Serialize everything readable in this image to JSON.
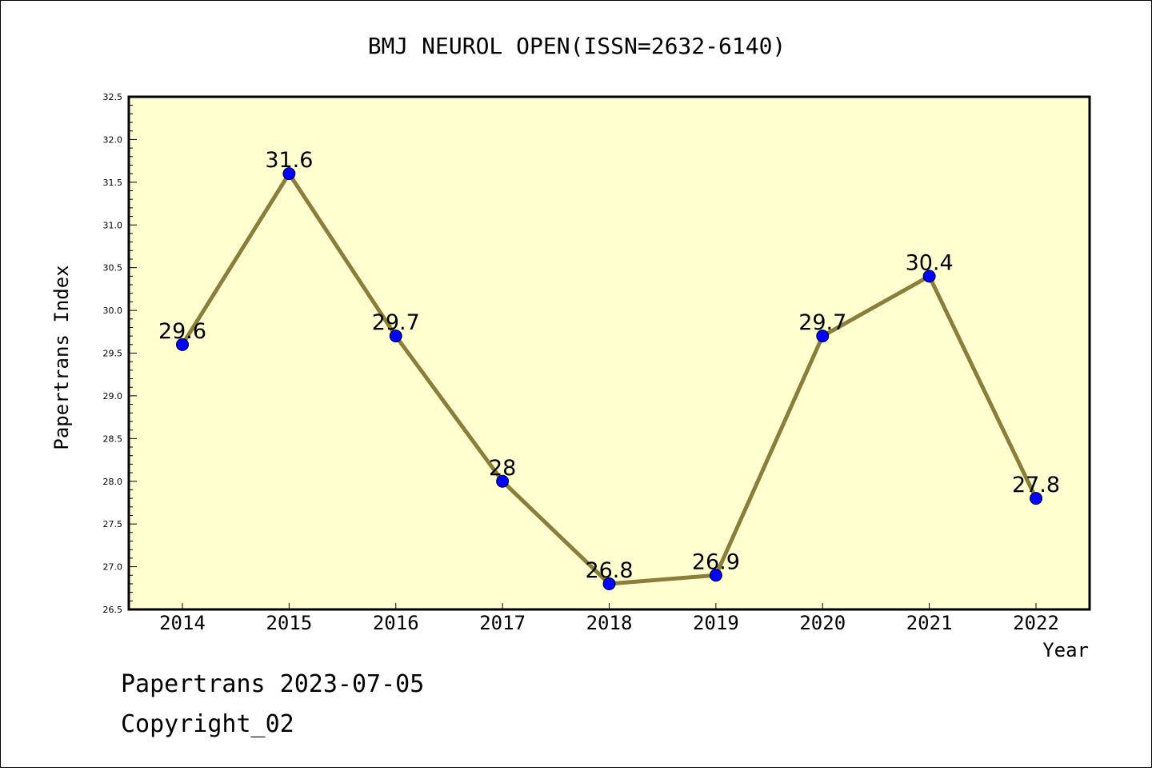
{
  "chart_data": {
    "type": "line",
    "title": "BMJ NEUROL OPEN(ISSN=2632-6140)",
    "xlabel": "Year",
    "ylabel": "Papertrans Index",
    "categories": [
      "2014",
      "2015",
      "2016",
      "2017",
      "2018",
      "2019",
      "2020",
      "2021",
      "2022"
    ],
    "values": [
      29.6,
      31.6,
      29.7,
      28,
      26.8,
      26.9,
      29.7,
      30.4,
      27.8
    ],
    "data_labels": [
      "29.6",
      "31.6",
      "29.7",
      "28",
      "26.8",
      "26.9",
      "29.7",
      "30.4",
      "27.8"
    ],
    "ylim": [
      26.5,
      32.5
    ],
    "yticks": [
      "26.5",
      "27.0",
      "27.5",
      "28.0",
      "28.5",
      "29.0",
      "29.5",
      "30.0",
      "30.5",
      "31.0",
      "31.5",
      "32.0",
      "32.5"
    ],
    "grid": false,
    "colors": {
      "plot_background": "#ffffd0",
      "line": "#8b7d3a",
      "marker": "#0000ff"
    }
  },
  "footer": {
    "line1": "Papertrans 2023-07-05",
    "line2": "Copyright_02"
  }
}
